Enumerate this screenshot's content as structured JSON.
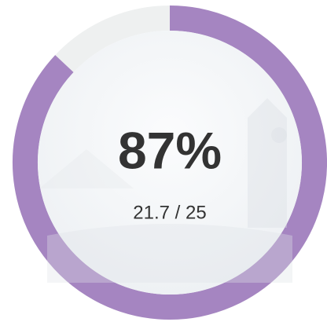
{
  "chart_data": {
    "type": "progress-ring",
    "values": [
      87
    ],
    "value_labels": [
      "87%"
    ],
    "subtitle": "21.7 / 25",
    "ylim": [
      0,
      100
    ],
    "color": "#a585c1",
    "track_color": "#eef0f0"
  }
}
